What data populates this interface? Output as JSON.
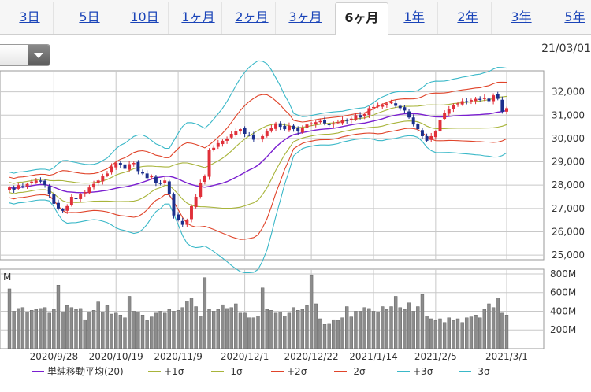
{
  "tabs": [
    {
      "label": "3日",
      "active": false
    },
    {
      "label": "5日",
      "active": false
    },
    {
      "label": "10日",
      "active": false
    },
    {
      "label": "1ヶ月",
      "active": false
    },
    {
      "label": "2ヶ月",
      "active": false
    },
    {
      "label": "3ヶ月",
      "active": false
    },
    {
      "label": "6ヶ月",
      "active": true
    },
    {
      "label": "1年",
      "active": false
    },
    {
      "label": "2年",
      "active": false
    },
    {
      "label": "3年",
      "active": false
    },
    {
      "label": "5年",
      "active": false
    }
  ],
  "header": {
    "date_label": "21/03/01"
  },
  "chart_data": {
    "type": "candlestick",
    "price_axis": {
      "range": [
        24800,
        32900
      ],
      "ticks": [
        25000,
        26000,
        27000,
        28000,
        29000,
        30000,
        31000,
        32000
      ],
      "tick_labels": [
        "25,000",
        "26,000",
        "27,000",
        "28,000",
        "29,000",
        "30,000",
        "31,000",
        "32,000"
      ]
    },
    "volume_axis": {
      "unit_label": "M",
      "range": [
        0,
        850
      ],
      "ticks": [
        200,
        400,
        600,
        800
      ],
      "tick_labels": [
        "200M",
        "400M",
        "600M",
        "800M"
      ]
    },
    "x_axis": {
      "labels": [
        "2020/9/28",
        "2020/10/19",
        "2020/11/9",
        "2020/12/1",
        "2020/12/22",
        "2021/1/14",
        "2021/2/5",
        "2021/3/1"
      ]
    },
    "close": [
      27900,
      27800,
      28000,
      27950,
      28050,
      28150,
      28200,
      28150,
      28000,
      27600,
      27200,
      27000,
      26900,
      27100,
      27500,
      27400,
      27600,
      27700,
      27900,
      28050,
      28200,
      28400,
      28500,
      28800,
      28950,
      28850,
      28700,
      28900,
      28950,
      28600,
      28500,
      28300,
      28400,
      28100,
      28050,
      28200,
      27600,
      26700,
      26500,
      26300,
      26500,
      27100,
      27500,
      28100,
      28400,
      29500,
      29600,
      29800,
      29900,
      30000,
      30200,
      30300,
      30400,
      30200,
      30150,
      29950,
      30000,
      30100,
      30300,
      30450,
      30650,
      30500,
      30400,
      30550,
      30400,
      30300,
      30450,
      30600,
      30650,
      30700,
      30750,
      30650,
      30600,
      30650,
      30700,
      30800,
      30750,
      30850,
      31000,
      30900,
      31050,
      31300,
      31350,
      31400,
      31450,
      31500,
      31550,
      31400,
      31300,
      31200,
      30900,
      30600,
      30400,
      30100,
      29900,
      30100,
      30300,
      30800,
      31100,
      31250,
      31450,
      31500,
      31600,
      31550,
      31650,
      31700,
      31650,
      31750,
      31600,
      31850,
      31700,
      31150,
      31300
    ],
    "volume": [
      640,
      400,
      430,
      440,
      390,
      410,
      420,
      430,
      440,
      380,
      420,
      680,
      390,
      460,
      440,
      420,
      430,
      310,
      390,
      410,
      500,
      390,
      460,
      370,
      380,
      360,
      330,
      560,
      400,
      390,
      360,
      300,
      340,
      380,
      400,
      380,
      420,
      400,
      410,
      440,
      510,
      540,
      450,
      350,
      760,
      420,
      400,
      420,
      470,
      430,
      440,
      480,
      380,
      380,
      330,
      330,
      350,
      650,
      420,
      410,
      380,
      390,
      350,
      380,
      440,
      410,
      420,
      460,
      790,
      480,
      320,
      260,
      270,
      310,
      300,
      330,
      450,
      340,
      400,
      400,
      440,
      430,
      400,
      390,
      450,
      420,
      450,
      560,
      440,
      420,
      490,
      400,
      450,
      580,
      350,
      320,
      300,
      320,
      280,
      330,
      300,
      320,
      280,
      330,
      340,
      360,
      330,
      420,
      480,
      440,
      540,
      380,
      360
    ],
    "series": [
      {
        "name": "単純移動平均(20)",
        "color": "#7a1fd0"
      },
      {
        "name": "+1σ",
        "color": "#a8b43a"
      },
      {
        "name": "-1σ",
        "color": "#a8b43a"
      },
      {
        "name": "+2σ",
        "color": "#e0442a"
      },
      {
        "name": "-2σ",
        "color": "#e0442a"
      },
      {
        "name": "+3σ",
        "color": "#3ab8c8"
      },
      {
        "name": "-3σ",
        "color": "#3ab8c8"
      }
    ],
    "colors": {
      "up": "#e0303a",
      "down": "#1c2f8c",
      "volume_bar": "#8c8c8c",
      "grid": "#c8c8c8"
    }
  }
}
